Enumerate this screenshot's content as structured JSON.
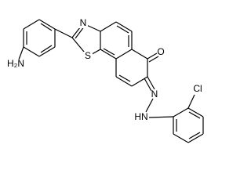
{
  "atoms": {
    "amine": "H₂N",
    "thiazole_n": "N",
    "thiazole_s": "S",
    "oxygen": "O",
    "imine_n": "N",
    "hydrazine_nh": "HN",
    "chlorine": "Cl"
  }
}
